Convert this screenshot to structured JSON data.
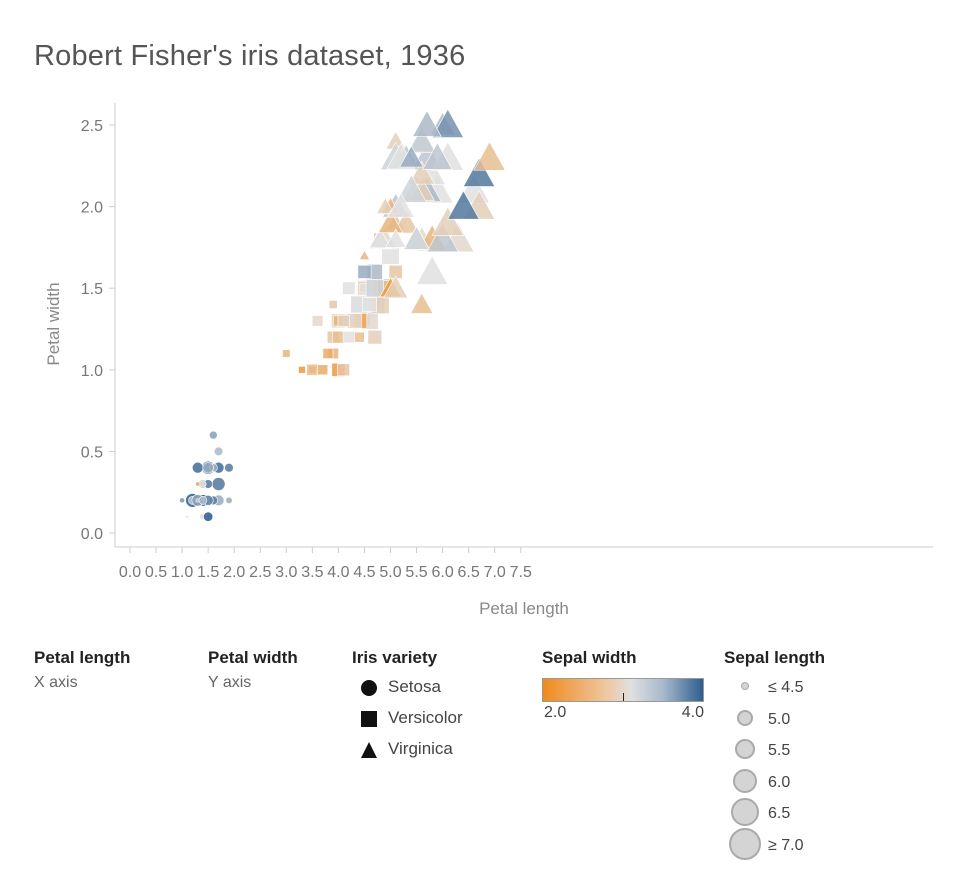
{
  "title": "Robert Fisher's iris dataset, 1936",
  "legend": {
    "x_head": "Petal length",
    "x_sub": "X axis",
    "y_head": "Petal width",
    "y_sub": "Y axis",
    "variety_head": "Iris variety",
    "varieties": [
      "Setosa",
      "Versicolor",
      "Virginica"
    ],
    "sepal_width_head": "Sepal width",
    "sepal_width_min": "2.0",
    "sepal_width_max": "4.0",
    "sepal_length_head": "Sepal length",
    "sepal_length_items": [
      "≤ 4.5",
      "5.0",
      "5.5",
      "6.0",
      "6.5",
      "≥ 7.0"
    ]
  },
  "colors": {
    "low": "#f08a1c",
    "mid": "#e0e0e0",
    "high": "#2e5e8e",
    "axis": "#cccccc",
    "text": "#666666"
  },
  "chart_data": {
    "type": "scatter",
    "title": "Robert Fisher's iris dataset, 1936",
    "xlabel": "Petal length",
    "ylabel": "Petal width",
    "xlim": [
      0,
      7.5
    ],
    "ylim": [
      0,
      2.6
    ],
    "x_ticks": [
      "0.0",
      "0.5",
      "1.0",
      "1.5",
      "2.0",
      "2.5",
      "3.0",
      "3.5",
      "4.0",
      "4.5",
      "5.0",
      "5.5",
      "6.0",
      "6.5",
      "7.0",
      "7.5"
    ],
    "y_ticks": [
      "0.0",
      "0.5",
      "1.0",
      "1.5",
      "2.0",
      "2.5"
    ],
    "encoding": {
      "shape": "Iris variety",
      "color": "Sepal width",
      "size": "Sepal length"
    },
    "color_range": [
      2.0,
      4.0
    ],
    "series": [
      {
        "name": "Setosa",
        "shape": "circle",
        "points": [
          [
            1.4,
            0.2,
            3.5,
            5.1
          ],
          [
            1.4,
            0.2,
            3.0,
            4.9
          ],
          [
            1.3,
            0.2,
            3.2,
            4.7
          ],
          [
            1.5,
            0.2,
            3.1,
            4.6
          ],
          [
            1.4,
            0.2,
            3.6,
            5.0
          ],
          [
            1.7,
            0.4,
            3.9,
            5.4
          ],
          [
            1.4,
            0.3,
            3.4,
            4.6
          ],
          [
            1.5,
            0.2,
            3.4,
            5.0
          ],
          [
            1.4,
            0.2,
            2.9,
            4.4
          ],
          [
            1.5,
            0.1,
            3.1,
            4.9
          ],
          [
            1.5,
            0.2,
            3.7,
            5.4
          ],
          [
            1.6,
            0.2,
            3.4,
            4.8
          ],
          [
            1.4,
            0.1,
            3.0,
            4.8
          ],
          [
            1.1,
            0.1,
            3.0,
            4.3
          ],
          [
            1.2,
            0.2,
            4.0,
            5.8
          ],
          [
            1.5,
            0.4,
            4.4,
            5.7
          ],
          [
            1.3,
            0.4,
            3.9,
            5.4
          ],
          [
            1.4,
            0.3,
            3.5,
            5.1
          ],
          [
            1.7,
            0.3,
            3.8,
            5.7
          ],
          [
            1.5,
            0.3,
            3.8,
            5.1
          ],
          [
            1.7,
            0.2,
            3.4,
            5.4
          ],
          [
            1.5,
            0.4,
            3.7,
            5.1
          ],
          [
            1.0,
            0.2,
            3.6,
            4.6
          ],
          [
            1.7,
            0.5,
            3.3,
            5.1
          ],
          [
            1.9,
            0.2,
            3.4,
            4.8
          ],
          [
            1.6,
            0.2,
            3.0,
            5.0
          ],
          [
            1.6,
            0.4,
            3.4,
            5.0
          ],
          [
            1.5,
            0.2,
            3.5,
            5.2
          ],
          [
            1.4,
            0.2,
            3.4,
            5.2
          ],
          [
            1.6,
            0.2,
            3.2,
            4.7
          ],
          [
            1.5,
            0.4,
            3.4,
            5.4
          ],
          [
            1.5,
            0.1,
            4.1,
            5.2
          ],
          [
            1.4,
            0.2,
            4.2,
            5.5
          ],
          [
            1.2,
            0.2,
            3.2,
            5.0
          ],
          [
            1.3,
            0.2,
            3.5,
            5.5
          ],
          [
            1.3,
            0.3,
            2.3,
            4.5
          ],
          [
            1.3,
            0.2,
            3.2,
            4.4
          ],
          [
            1.6,
            0.6,
            3.5,
            5.0
          ],
          [
            1.9,
            0.4,
            3.8,
            5.1
          ],
          [
            1.4,
            0.3,
            3.0,
            4.8
          ],
          [
            1.6,
            0.2,
            3.8,
            5.1
          ],
          [
            1.5,
            0.2,
            3.7,
            5.3
          ],
          [
            1.4,
            0.2,
            3.3,
            5.0
          ]
        ]
      },
      {
        "name": "Versicolor",
        "shape": "square",
        "points": [
          [
            4.7,
            1.4,
            3.2,
            7.0
          ],
          [
            4.5,
            1.5,
            3.2,
            6.4
          ],
          [
            4.9,
            1.5,
            3.1,
            6.9
          ],
          [
            4.0,
            1.3,
            2.3,
            5.5
          ],
          [
            4.6,
            1.5,
            2.8,
            6.5
          ],
          [
            4.5,
            1.3,
            2.8,
            5.7
          ],
          [
            4.7,
            1.6,
            3.3,
            6.3
          ],
          [
            3.3,
            1.0,
            2.4,
            4.9
          ],
          [
            4.6,
            1.3,
            2.9,
            6.6
          ],
          [
            3.9,
            1.4,
            2.7,
            5.2
          ],
          [
            3.5,
            1.0,
            2.0,
            5.0
          ],
          [
            4.2,
            1.5,
            3.0,
            5.9
          ],
          [
            4.0,
            1.0,
            2.2,
            6.0
          ],
          [
            4.7,
            1.4,
            2.9,
            6.1
          ],
          [
            3.6,
            1.3,
            2.9,
            5.6
          ],
          [
            4.4,
            1.4,
            3.1,
            6.7
          ],
          [
            4.5,
            1.5,
            3.0,
            5.6
          ],
          [
            4.1,
            1.0,
            2.7,
            5.8
          ],
          [
            4.5,
            1.5,
            2.2,
            6.2
          ],
          [
            3.9,
            1.1,
            2.5,
            5.6
          ],
          [
            4.8,
            1.8,
            3.2,
            5.9
          ],
          [
            4.0,
            1.3,
            2.8,
            6.1
          ],
          [
            4.9,
            1.5,
            2.5,
            6.3
          ],
          [
            4.7,
            1.2,
            2.8,
            6.1
          ],
          [
            4.3,
            1.3,
            2.9,
            6.4
          ],
          [
            4.4,
            1.4,
            3.0,
            6.6
          ],
          [
            4.8,
            1.4,
            2.8,
            6.8
          ],
          [
            5.0,
            1.7,
            3.0,
            6.7
          ],
          [
            4.5,
            1.5,
            2.9,
            6.0
          ],
          [
            3.5,
            1.0,
            2.6,
            5.7
          ],
          [
            3.8,
            1.1,
            2.4,
            5.5
          ],
          [
            3.7,
            1.0,
            2.4,
            5.5
          ],
          [
            3.9,
            1.2,
            2.7,
            5.8
          ],
          [
            5.1,
            1.6,
            2.7,
            6.0
          ],
          [
            4.5,
            1.5,
            3.0,
            5.4
          ],
          [
            4.5,
            1.6,
            3.4,
            6.0
          ],
          [
            4.7,
            1.5,
            3.1,
            6.7
          ],
          [
            4.4,
            1.3,
            2.3,
            6.3
          ],
          [
            4.1,
            1.3,
            3.0,
            5.6
          ],
          [
            4.0,
            1.3,
            2.5,
            5.5
          ],
          [
            4.4,
            1.2,
            2.6,
            5.5
          ],
          [
            4.6,
            1.4,
            3.0,
            6.1
          ],
          [
            4.0,
            1.2,
            2.6,
            5.8
          ],
          [
            3.3,
            1.0,
            2.3,
            5.0
          ],
          [
            4.2,
            1.3,
            2.7,
            5.6
          ],
          [
            4.2,
            1.2,
            3.0,
            5.7
          ],
          [
            4.3,
            1.3,
            2.9,
            6.2
          ],
          [
            3.0,
            1.1,
            2.5,
            5.1
          ],
          [
            4.1,
            1.3,
            2.8,
            5.7
          ]
        ]
      },
      {
        "name": "Virginica",
        "shape": "triangle",
        "points": [
          [
            6.0,
            2.5,
            3.3,
            6.3
          ],
          [
            5.1,
            1.9,
            2.7,
            5.8
          ],
          [
            5.9,
            2.1,
            3.0,
            7.1
          ],
          [
            5.6,
            1.8,
            2.9,
            6.3
          ],
          [
            5.8,
            2.2,
            3.0,
            6.5
          ],
          [
            6.6,
            2.1,
            3.0,
            7.6
          ],
          [
            4.5,
            1.7,
            2.5,
            4.9
          ],
          [
            6.3,
            1.8,
            2.9,
            7.3
          ],
          [
            5.8,
            1.8,
            2.5,
            6.7
          ],
          [
            6.1,
            2.5,
            3.6,
            7.2
          ],
          [
            5.1,
            2.0,
            3.2,
            6.5
          ],
          [
            5.3,
            1.9,
            2.7,
            6.4
          ],
          [
            5.5,
            2.1,
            3.0,
            6.8
          ],
          [
            5.0,
            2.0,
            2.5,
            5.7
          ],
          [
            5.1,
            2.4,
            2.8,
            5.8
          ],
          [
            5.3,
            2.3,
            3.2,
            6.4
          ],
          [
            5.5,
            1.8,
            3.0,
            6.5
          ],
          [
            6.7,
            2.2,
            3.8,
            7.7
          ],
          [
            6.9,
            2.3,
            2.6,
            7.7
          ],
          [
            5.0,
            1.5,
            2.2,
            6.0
          ],
          [
            5.7,
            2.3,
            3.2,
            6.9
          ],
          [
            4.9,
            2.0,
            2.8,
            5.6
          ],
          [
            6.7,
            2.0,
            2.8,
            7.7
          ],
          [
            4.9,
            1.8,
            2.7,
            6.3
          ],
          [
            5.7,
            2.1,
            3.3,
            6.7
          ],
          [
            6.0,
            1.8,
            3.2,
            7.2
          ],
          [
            4.8,
            1.8,
            2.8,
            6.2
          ],
          [
            4.9,
            1.8,
            3.0,
            6.1
          ],
          [
            5.6,
            2.1,
            2.8,
            6.4
          ],
          [
            5.8,
            1.6,
            3.0,
            7.2
          ],
          [
            6.1,
            1.9,
            2.8,
            7.4
          ],
          [
            6.4,
            2.0,
            3.8,
            7.9
          ],
          [
            5.6,
            2.2,
            2.8,
            6.4
          ],
          [
            5.1,
            1.5,
            2.8,
            6.3
          ],
          [
            5.6,
            1.4,
            2.6,
            6.1
          ],
          [
            6.1,
            2.3,
            3.0,
            7.7
          ],
          [
            5.6,
            2.4,
            3.4,
            6.3
          ],
          [
            5.5,
            1.8,
            3.1,
            6.4
          ],
          [
            4.8,
            1.8,
            3.0,
            6.0
          ],
          [
            5.4,
            2.1,
            3.1,
            6.9
          ],
          [
            5.6,
            2.4,
            3.1,
            6.7
          ],
          [
            5.1,
            2.3,
            3.1,
            6.9
          ],
          [
            5.9,
            2.3,
            3.2,
            6.8
          ],
          [
            5.7,
            2.5,
            3.3,
            6.7
          ],
          [
            5.2,
            2.3,
            3.0,
            6.7
          ],
          [
            5.0,
            1.9,
            2.5,
            6.3
          ],
          [
            5.2,
            2.0,
            3.0,
            6.5
          ],
          [
            5.4,
            2.3,
            3.4,
            6.2
          ],
          [
            5.1,
            1.8,
            3.0,
            5.9
          ]
        ]
      }
    ],
    "point_fields": [
      "petal_length",
      "petal_width",
      "sepal_width",
      "sepal_length"
    ],
    "grid": false,
    "legend_position": "bottom"
  }
}
